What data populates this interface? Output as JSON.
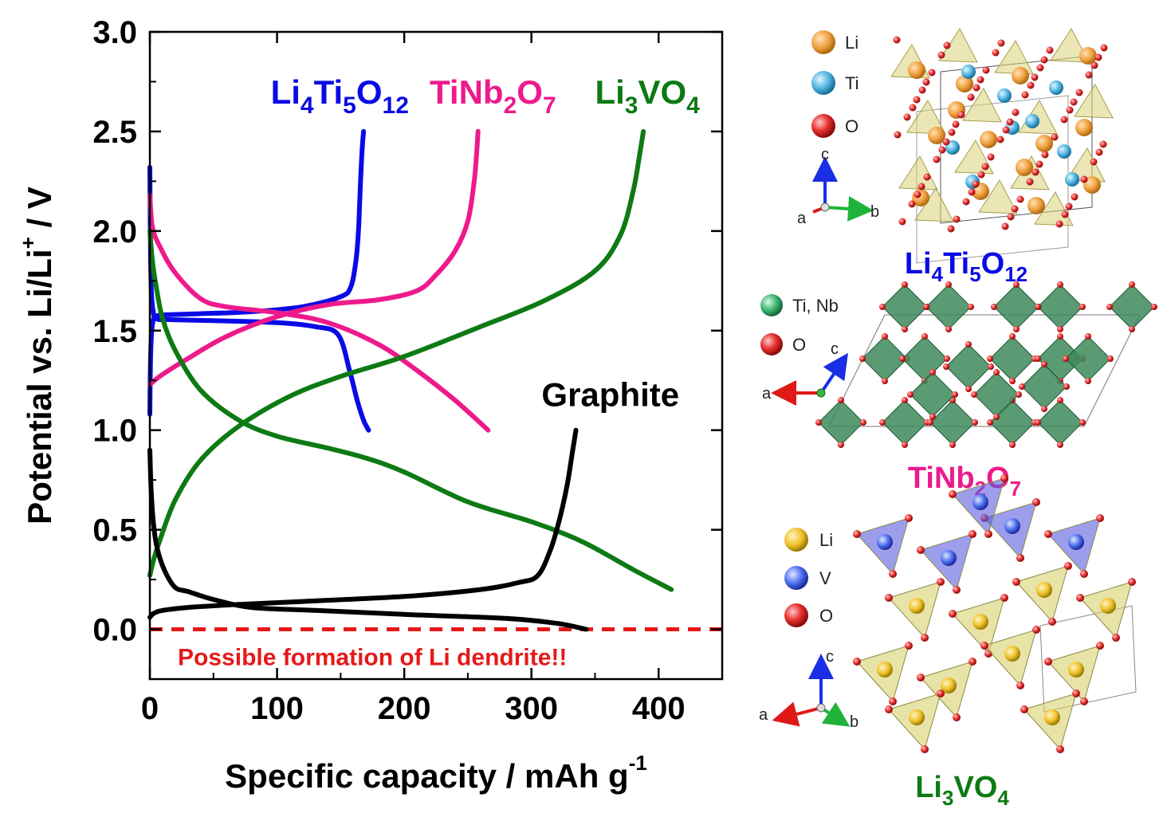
{
  "chart_data": {
    "type": "line",
    "xlabel": "Specific capacity / mAh g",
    "xlabel_sup": "-1",
    "ylabel_main": "Potential vs. Li/Li",
    "ylabel_sup": "+",
    "ylabel_tail": " / V",
    "xlim": [
      0,
      450
    ],
    "ylim": [
      -0.25,
      3.0
    ],
    "x_ticks": [
      0,
      100,
      200,
      300,
      400
    ],
    "y_ticks": [
      0.0,
      0.5,
      1.0,
      1.5,
      2.0,
      2.5,
      3.0
    ],
    "x_tick_labels": [
      "0",
      "100",
      "200",
      "300",
      "400"
    ],
    "y_tick_labels": [
      "0.0",
      "0.5",
      "1.0",
      "1.5",
      "2.0",
      "2.5",
      "3.0"
    ],
    "grid": false,
    "series": [
      {
        "id": "li4ti5o12",
        "label_parts": [
          {
            "t": "Li",
            "sub": false
          },
          {
            "t": "4",
            "sub": true
          },
          {
            "t": "Ti",
            "sub": false
          },
          {
            "t": "5",
            "sub": true
          },
          {
            "t": "O",
            "sub": false
          },
          {
            "t": "12",
            "sub": true
          }
        ],
        "color": "#0a0ae6",
        "label_pos": [
          95,
          2.64
        ],
        "curves": [
          {
            "kind": "charge",
            "x": [
              0,
              0.5,
              1.5,
              3,
              6,
              15,
              40,
              80,
              120,
              150,
              158,
              162,
              164,
              165,
              166,
              167,
              168
            ],
            "y": [
              1.08,
              1.35,
              1.5,
              1.56,
              1.575,
              1.58,
              1.585,
              1.595,
              1.62,
              1.67,
              1.72,
              1.85,
              2.0,
              2.15,
              2.3,
              2.42,
              2.5
            ]
          },
          {
            "kind": "discharge",
            "x": [
              0,
              0.5,
              1.2,
              2.5,
              5,
              15,
              50,
              100,
              130,
              148,
              157,
              163,
              168,
              172
            ],
            "y": [
              2.32,
              1.9,
              1.7,
              1.6,
              1.56,
              1.555,
              1.55,
              1.54,
              1.52,
              1.48,
              1.3,
              1.15,
              1.05,
              1.0
            ]
          }
        ]
      },
      {
        "id": "tinb2o7",
        "label_parts": [
          {
            "t": "TiNb",
            "sub": false
          },
          {
            "t": "2",
            "sub": true
          },
          {
            "t": "O",
            "sub": false
          },
          {
            "t": "7",
            "sub": true
          }
        ],
        "color": "#ee1a8c",
        "label_pos": [
          220,
          2.64
        ],
        "curves": [
          {
            "kind": "charge",
            "x": [
              0,
              10,
              30,
              60,
              100,
              140,
              180,
              210,
              225,
              240,
              250,
              255,
              257,
              258
            ],
            "y": [
              1.23,
              1.28,
              1.36,
              1.47,
              1.57,
              1.63,
              1.655,
              1.7,
              1.78,
              1.9,
              2.05,
              2.25,
              2.4,
              2.5
            ]
          },
          {
            "kind": "discharge",
            "x": [
              0,
              2,
              8,
              20,
              40,
              60,
              100,
              140,
              180,
              210,
              240,
              266
            ],
            "y": [
              2.18,
              2.02,
              1.92,
              1.79,
              1.66,
              1.62,
              1.59,
              1.54,
              1.43,
              1.3,
              1.15,
              1.0
            ]
          }
        ]
      },
      {
        "id": "li3vo4",
        "label_parts": [
          {
            "t": "Li",
            "sub": false
          },
          {
            "t": "3",
            "sub": true
          },
          {
            "t": "VO",
            "sub": false
          },
          {
            "t": "4",
            "sub": true
          }
        ],
        "color": "#0d7a13",
        "label_pos": [
          350,
          2.64
        ],
        "curves": [
          {
            "kind": "charge",
            "x": [
              0,
              3,
              8,
              20,
              40,
              70,
              110,
              150,
              200,
              260,
              310,
              350,
              370,
              380,
              385,
              388
            ],
            "y": [
              0.27,
              0.35,
              0.45,
              0.65,
              0.85,
              1.02,
              1.17,
              1.27,
              1.37,
              1.52,
              1.65,
              1.8,
              1.98,
              2.2,
              2.38,
              2.5
            ]
          },
          {
            "kind": "discharge",
            "x": [
              0,
              2,
              5,
              10,
              20,
              40,
              70,
              100,
              140,
              170,
              200,
              250,
              300,
              340,
              380,
              410
            ],
            "y": [
              2.0,
              1.85,
              1.72,
              1.56,
              1.4,
              1.2,
              1.05,
              0.97,
              0.91,
              0.86,
              0.79,
              0.64,
              0.54,
              0.44,
              0.3,
              0.2
            ]
          }
        ]
      },
      {
        "id": "graphite",
        "label_parts": [
          {
            "t": "Graphite",
            "sub": false
          }
        ],
        "color": "#000000",
        "label_pos": [
          308,
          1.12
        ],
        "curves": [
          {
            "kind": "charge",
            "x": [
              0,
              3,
              10,
              30,
              70,
              120,
              200,
              260,
              290,
              305,
              315,
              322,
              328,
              332,
              335
            ],
            "y": [
              0.06,
              0.08,
              0.095,
              0.11,
              0.125,
              0.14,
              0.165,
              0.2,
              0.235,
              0.27,
              0.4,
              0.55,
              0.72,
              0.88,
              1.0
            ]
          },
          {
            "kind": "discharge",
            "x": [
              0,
              1,
              3,
              6,
              12,
              20,
              30,
              50,
              80,
              130,
              200,
              280,
              320,
              343
            ],
            "y": [
              0.9,
              0.7,
              0.52,
              0.4,
              0.29,
              0.21,
              0.19,
              0.15,
              0.11,
              0.095,
              0.075,
              0.055,
              0.03,
              0.0
            ]
          }
        ]
      }
    ],
    "reference_line": {
      "y": 0.0,
      "color": "#e61919",
      "style": "dashed"
    },
    "annotation": {
      "text": "Possible formation of Li dendrite!!",
      "color": "#e61919",
      "x": 175,
      "y": -0.14
    }
  },
  "structures": [
    {
      "id": "li4ti5o12-structure",
      "title_parts": [
        {
          "t": "Li",
          "sub": false
        },
        {
          "t": "4",
          "sub": true
        },
        {
          "t": "Ti",
          "sub": false
        },
        {
          "t": "5",
          "sub": true
        },
        {
          "t": "O",
          "sub": false
        },
        {
          "t": "12",
          "sub": true
        }
      ],
      "title_color": "#0a0ae6",
      "legend": [
        {
          "label": "Li",
          "color": "#f0a040"
        },
        {
          "label": "Ti",
          "color": "#4fb3e0"
        },
        {
          "label": "O",
          "color": "#e83030"
        }
      ],
      "axes": [
        "c",
        "a",
        "b"
      ]
    },
    {
      "id": "tinb2o7-structure",
      "title_parts": [
        {
          "t": "TiNb",
          "sub": false
        },
        {
          "t": "2",
          "sub": true
        },
        {
          "t": "O",
          "sub": false
        },
        {
          "t": "7",
          "sub": true
        }
      ],
      "title_color": "#ee1a8c",
      "legend": [
        {
          "label": "Ti, Nb",
          "color": "#3cb36e"
        },
        {
          "label": "O",
          "color": "#e83030"
        }
      ],
      "axes": [
        "c",
        "a"
      ]
    },
    {
      "id": "li3vo4-structure",
      "title_parts": [
        {
          "t": "Li",
          "sub": false
        },
        {
          "t": "3",
          "sub": true
        },
        {
          "t": "VO",
          "sub": false
        },
        {
          "t": "4",
          "sub": true
        }
      ],
      "title_color": "#0d7a13",
      "legend": [
        {
          "label": "Li",
          "color": "#f2c22a"
        },
        {
          "label": "V",
          "color": "#4d6ef0"
        },
        {
          "label": "O",
          "color": "#e01010"
        }
      ],
      "axes": [
        "c",
        "a",
        "b"
      ]
    }
  ]
}
